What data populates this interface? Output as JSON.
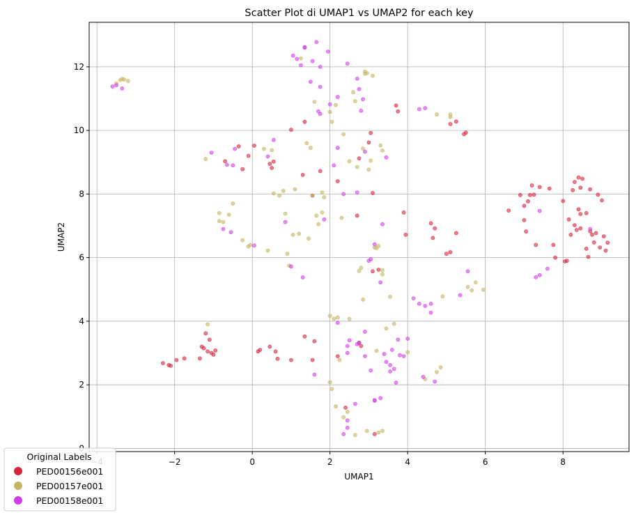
{
  "chart_data": {
    "type": "scatter",
    "title": "Scatter Plot di UMAP1 vs UMAP2 for each key",
    "xlabel": "UMAP1",
    "ylabel": "UMAP2",
    "xlim": [
      -4.2,
      9.7
    ],
    "ylim": [
      -0.1,
      13.4
    ],
    "xticks": [
      -4,
      -2,
      0,
      2,
      4,
      6,
      8
    ],
    "yticks": [
      0,
      2,
      4,
      6,
      8,
      10,
      12
    ],
    "xtick_labels": [
      "−4",
      "−2",
      "0",
      "2",
      "4",
      "6",
      "8"
    ],
    "ytick_labels": [
      "0",
      "2",
      "4",
      "6",
      "8",
      "10",
      "12"
    ],
    "grid": true,
    "legend": {
      "title": "Original Labels",
      "placement": "lower-left"
    },
    "series": [
      {
        "name": "PED00156e001",
        "color": "#d6263f",
        "points": [
          [
            -2.3,
            2.68
          ],
          [
            -2.15,
            2.62
          ],
          [
            -2.1,
            2.6
          ],
          [
            -1.95,
            2.78
          ],
          [
            -1.75,
            2.83
          ],
          [
            -1.35,
            2.83
          ],
          [
            -1.3,
            3.2
          ],
          [
            -1.25,
            3.15
          ],
          [
            -1.2,
            3.62
          ],
          [
            -1.15,
            3.05
          ],
          [
            -1.1,
            3.42
          ],
          [
            -1.05,
            3.0
          ],
          [
            -1.0,
            2.95
          ],
          [
            -0.95,
            3.08
          ],
          [
            0.15,
            3.05
          ],
          [
            0.2,
            3.1
          ],
          [
            0.45,
            3.2
          ],
          [
            0.6,
            3.05
          ],
          [
            0.65,
            2.82
          ],
          [
            1.0,
            2.78
          ],
          [
            1.35,
            3.52
          ],
          [
            1.55,
            2.78
          ],
          [
            1.6,
            3.37
          ],
          [
            2.2,
            2.9
          ],
          [
            2.4,
            1.28
          ],
          [
            2.75,
            3.32
          ],
          [
            2.8,
            3.22
          ],
          [
            3.1,
            5.57
          ],
          [
            3.15,
            0.45
          ],
          [
            3.25,
            5.62
          ],
          [
            -0.7,
            9.03
          ],
          [
            -0.35,
            9.5
          ],
          [
            -0.25,
            8.78
          ],
          [
            -0.1,
            9.2
          ],
          [
            0.05,
            9.52
          ],
          [
            0.45,
            8.95
          ],
          [
            0.5,
            8.82
          ],
          [
            0.55,
            9.02
          ],
          [
            1.0,
            10.02
          ],
          [
            1.3,
            8.6
          ],
          [
            1.35,
            10.27
          ],
          [
            1.55,
            7.95
          ],
          [
            1.75,
            8.72
          ],
          [
            2.2,
            8.4
          ],
          [
            2.7,
            7.32
          ],
          [
            2.75,
            9.12
          ],
          [
            3.0,
            9.62
          ],
          [
            3.05,
            9.92
          ],
          [
            3.1,
            8.03
          ],
          [
            3.7,
            10.78
          ],
          [
            3.75,
            10.6
          ],
          [
            3.9,
            7.42
          ],
          [
            3.95,
            6.72
          ],
          [
            4.6,
            7.08
          ],
          [
            4.65,
            6.62
          ],
          [
            4.7,
            6.92
          ],
          [
            5.0,
            6.12
          ],
          [
            5.1,
            6.17
          ],
          [
            5.1,
            10.2
          ],
          [
            5.25,
            6.77
          ],
          [
            5.25,
            10.28
          ],
          [
            5.45,
            9.88
          ],
          [
            5.5,
            9.93
          ],
          [
            6.6,
            7.48
          ],
          [
            6.9,
            7.97
          ],
          [
            7.0,
            7.18
          ],
          [
            7.0,
            7.63
          ],
          [
            7.05,
            6.82
          ],
          [
            7.1,
            7.77
          ],
          [
            7.15,
            7.97
          ],
          [
            7.2,
            8.27
          ],
          [
            7.25,
            7.98
          ],
          [
            7.3,
            6.4
          ],
          [
            7.4,
            8.22
          ],
          [
            7.65,
            8.17
          ],
          [
            7.75,
            6.4
          ],
          [
            7.8,
            6.0
          ],
          [
            8.0,
            7.78
          ],
          [
            8.05,
            5.88
          ],
          [
            8.1,
            5.9
          ],
          [
            8.15,
            7.2
          ],
          [
            8.2,
            6.72
          ],
          [
            8.25,
            8.12
          ],
          [
            8.3,
            8.38
          ],
          [
            8.3,
            7.02
          ],
          [
            8.35,
            6.87
          ],
          [
            8.4,
            8.52
          ],
          [
            8.4,
            7.52
          ],
          [
            8.45,
            8.2
          ],
          [
            8.45,
            6.92
          ],
          [
            8.45,
            7.37
          ],
          [
            8.5,
            8.48
          ],
          [
            8.6,
            7.4
          ],
          [
            8.6,
            6.28
          ],
          [
            8.65,
            6.02
          ],
          [
            8.7,
            6.83
          ],
          [
            8.7,
            8.15
          ],
          [
            8.75,
            6.72
          ],
          [
            8.8,
            6.48
          ],
          [
            8.85,
            6.77
          ],
          [
            8.9,
            7.98
          ],
          [
            8.95,
            6.32
          ],
          [
            9.0,
            7.8
          ],
          [
            9.05,
            6.67
          ],
          [
            9.1,
            6.22
          ],
          [
            9.15,
            6.47
          ]
        ]
      },
      {
        "name": "PED00157e001",
        "color": "#c4b663",
        "points": [
          [
            -3.5,
            11.48
          ],
          [
            -3.4,
            11.58
          ],
          [
            -3.35,
            11.62
          ],
          [
            -3.3,
            11.6
          ],
          [
            -3.2,
            11.55
          ],
          [
            -1.2,
            9.1
          ],
          [
            -1.15,
            3.9
          ],
          [
            -0.85,
            7.15
          ],
          [
            -0.85,
            7.4
          ],
          [
            -0.75,
            7.12
          ],
          [
            -0.6,
            7.35
          ],
          [
            -0.5,
            7.7
          ],
          [
            -0.25,
            6.55
          ],
          [
            -0.1,
            6.35
          ],
          [
            -0.05,
            6.4
          ],
          [
            0.3,
            9.42
          ],
          [
            0.4,
            6.22
          ],
          [
            0.5,
            9.38
          ],
          [
            0.55,
            8.02
          ],
          [
            0.7,
            7.95
          ],
          [
            0.8,
            8.1
          ],
          [
            0.85,
            7.38
          ],
          [
            0.9,
            6.12
          ],
          [
            0.95,
            5.75
          ],
          [
            1.05,
            6.72
          ],
          [
            1.1,
            8.15
          ],
          [
            1.2,
            6.75
          ],
          [
            1.25,
            12.27
          ],
          [
            1.4,
            9.6
          ],
          [
            1.45,
            6.6
          ],
          [
            1.5,
            9.45
          ],
          [
            1.55,
            7.95
          ],
          [
            1.6,
            10.9
          ],
          [
            1.65,
            7.32
          ],
          [
            1.7,
            7.05
          ],
          [
            1.8,
            8.05
          ],
          [
            1.85,
            7.9
          ],
          [
            1.8,
            7.42
          ],
          [
            2.0,
            4.17
          ],
          [
            2.0,
            10.58
          ],
          [
            2.05,
            10.27
          ],
          [
            2.1,
            4.08
          ],
          [
            2.15,
            10.8
          ],
          [
            2.2,
            4.12
          ],
          [
            2.25,
            2.78
          ],
          [
            2.3,
            7.25
          ],
          [
            2.35,
            9.88
          ],
          [
            2.5,
            4.07
          ],
          [
            2.5,
            9.03
          ],
          [
            2.6,
            11.2
          ],
          [
            2.65,
            10.92
          ],
          [
            2.7,
            8.85
          ],
          [
            2.75,
            5.58
          ],
          [
            2.8,
            5.68
          ],
          [
            2.85,
            4.68
          ],
          [
            2.85,
            9.43
          ],
          [
            2.9,
            11.78
          ],
          [
            2.9,
            11.85
          ],
          [
            2.95,
            11.8
          ],
          [
            3.0,
            8.77
          ],
          [
            3.05,
            9.05
          ],
          [
            3.1,
            11.72
          ],
          [
            3.15,
            6.32
          ],
          [
            3.2,
            3.07
          ],
          [
            3.2,
            6.3
          ],
          [
            3.25,
            6.37
          ],
          [
            3.3,
            9.53
          ],
          [
            3.35,
            9.37
          ],
          [
            3.35,
            5.47
          ],
          [
            3.35,
            5.6
          ],
          [
            3.45,
            3.77
          ],
          [
            3.55,
            4.77
          ],
          [
            3.65,
            3.92
          ],
          [
            4.0,
            3.02
          ],
          [
            4.75,
            10.5
          ],
          [
            4.9,
            4.78
          ],
          [
            5.1,
            10.5
          ],
          [
            5.1,
            10.42
          ],
          [
            5.55,
            5.08
          ],
          [
            5.65,
            4.97
          ],
          [
            5.75,
            5.22
          ],
          [
            5.95,
            4.99
          ],
          [
            4.45,
            2.18
          ],
          [
            4.75,
            2.4
          ],
          [
            4.85,
            2.55
          ],
          [
            2.0,
            2.08
          ],
          [
            2.05,
            1.87
          ],
          [
            2.15,
            1.32
          ],
          [
            2.35,
            0.98
          ],
          [
            2.45,
            1.15
          ],
          [
            2.65,
            0.42
          ],
          [
            2.95,
            0.55
          ],
          [
            3.25,
            0.5
          ],
          [
            3.35,
            0.55
          ]
        ]
      },
      {
        "name": "PED00158e001",
        "color": "#d23fea",
        "points": [
          [
            -3.6,
            11.38
          ],
          [
            -3.5,
            11.42
          ],
          [
            -3.35,
            11.32
          ],
          [
            -1.05,
            9.3
          ],
          [
            -0.75,
            6.9
          ],
          [
            -0.65,
            8.92
          ],
          [
            -0.55,
            6.8
          ],
          [
            -0.5,
            8.9
          ],
          [
            -0.45,
            9.42
          ],
          [
            0.05,
            6.38
          ],
          [
            0.4,
            9.18
          ],
          [
            0.55,
            9.7
          ],
          [
            0.85,
            7.12
          ],
          [
            1.0,
            5.72
          ],
          [
            1.05,
            12.35
          ],
          [
            1.15,
            12.25
          ],
          [
            1.25,
            12.05
          ],
          [
            1.3,
            5.38
          ],
          [
            1.35,
            12.6
          ],
          [
            1.35,
            12.62
          ],
          [
            1.5,
            11.53
          ],
          [
            1.55,
            12.18
          ],
          [
            1.65,
            12.78
          ],
          [
            1.75,
            11.37
          ],
          [
            1.75,
            12.0
          ],
          [
            1.7,
            10.6
          ],
          [
            1.75,
            10.52
          ],
          [
            1.85,
            7.2
          ],
          [
            1.95,
            12.48
          ],
          [
            2.0,
            10.82
          ],
          [
            2.2,
            11.05
          ],
          [
            2.2,
            9.45
          ],
          [
            2.35,
            8.0
          ],
          [
            2.45,
            3.22
          ],
          [
            2.45,
            12.1
          ],
          [
            2.5,
            3.4
          ],
          [
            2.7,
            11.63
          ],
          [
            2.75,
            11.3
          ],
          [
            2.8,
            10.62
          ],
          [
            2.85,
            10.98
          ],
          [
            2.9,
            9.33
          ],
          [
            3.0,
            5.9
          ],
          [
            3.05,
            5.95
          ],
          [
            3.15,
            6.42
          ],
          [
            3.3,
            5.22
          ],
          [
            3.35,
            7.05
          ],
          [
            3.45,
            9.15
          ],
          [
            3.55,
            2.62
          ],
          [
            3.7,
            2.07
          ],
          [
            3.75,
            3.42
          ],
          [
            3.6,
            3.1
          ],
          [
            3.9,
            2.9
          ],
          [
            4.0,
            3.45
          ],
          [
            4.15,
            4.72
          ],
          [
            4.3,
            4.55
          ],
          [
            4.45,
            4.48
          ],
          [
            4.6,
            4.55
          ],
          [
            4.6,
            4.27
          ],
          [
            4.3,
            10.67
          ],
          [
            4.45,
            10.7
          ],
          [
            4.4,
            2.25
          ],
          [
            4.7,
            2.1
          ],
          [
            5.55,
            5.57
          ],
          [
            5.35,
            4.82
          ],
          [
            7.3,
            5.38
          ],
          [
            7.4,
            5.45
          ],
          [
            7.4,
            7.47
          ],
          [
            7.6,
            5.65
          ],
          [
            8.7,
            6.9
          ],
          [
            2.9,
            3.67
          ],
          [
            2.7,
            3.28
          ],
          [
            2.75,
            3.32
          ],
          [
            2.9,
            2.9
          ],
          [
            3.05,
            2.45
          ],
          [
            3.4,
            2.97
          ],
          [
            3.45,
            2.72
          ],
          [
            3.55,
            2.42
          ],
          [
            3.65,
            2.5
          ],
          [
            3.8,
            2.93
          ],
          [
            1.6,
            2.32
          ],
          [
            2.2,
            3.95
          ],
          [
            2.65,
            1.4
          ],
          [
            2.35,
            0.45
          ],
          [
            2.45,
            0.65
          ],
          [
            2.45,
            0.88
          ],
          [
            3.15,
            1.52
          ],
          [
            3.3,
            1.58
          ],
          [
            3.15,
            1.5
          ],
          [
            2.45,
            3.0
          ],
          [
            2.1,
            8.9
          ],
          [
            2.7,
            8.05
          ]
        ]
      }
    ]
  }
}
